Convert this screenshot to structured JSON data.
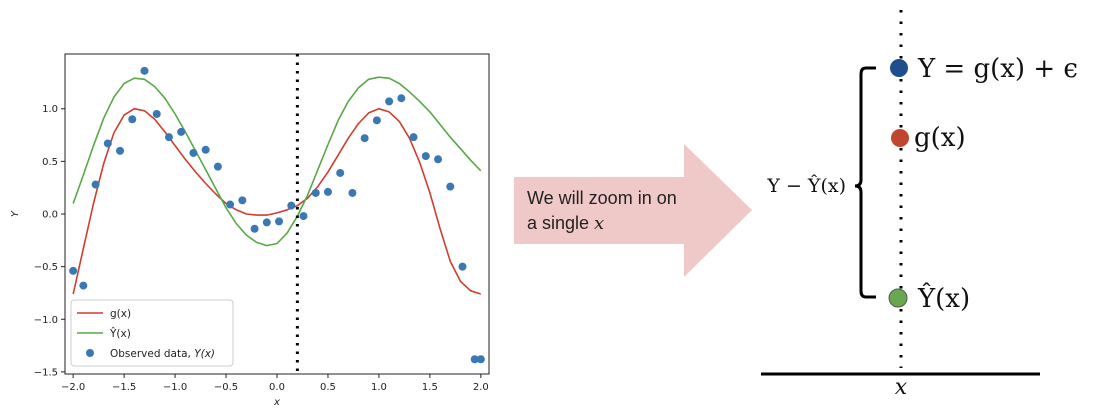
{
  "chart_data": {
    "type": "scatter",
    "xlabel": "x",
    "ylabel": "Y",
    "xlim": [
      -2.08,
      2.08
    ],
    "ylim": [
      -1.52,
      1.52
    ],
    "xticks": [
      "−2.0",
      "−1.5",
      "−1.0",
      "−0.5",
      "0.0",
      "0.5",
      "1.0",
      "1.5",
      "2.0"
    ],
    "xtick_values": [
      -2.0,
      -1.5,
      -1.0,
      -0.5,
      0.0,
      0.5,
      1.0,
      1.5,
      2.0
    ],
    "yticks": [
      "−1.5",
      "−1.0",
      "−0.5",
      "0.0",
      "0.5",
      "1.0"
    ],
    "ytick_values": [
      -1.5,
      -1.0,
      -0.5,
      0.0,
      0.5,
      1.0
    ],
    "vline_x": 0.2,
    "legend_position": "lower-left",
    "series": [
      {
        "name": "g(x)",
        "kind": "line",
        "color": "#d03d2e",
        "x": [
          -2.0,
          -1.9,
          -1.8,
          -1.7,
          -1.6,
          -1.5,
          -1.4,
          -1.3,
          -1.2,
          -1.1,
          -1.0,
          -0.9,
          -0.8,
          -0.7,
          -0.6,
          -0.5,
          -0.4,
          -0.3,
          -0.2,
          -0.1,
          0.0,
          0.1,
          0.2,
          0.3,
          0.4,
          0.5,
          0.6,
          0.7,
          0.8,
          0.9,
          1.0,
          1.1,
          1.2,
          1.3,
          1.4,
          1.5,
          1.6,
          1.7,
          1.8,
          1.9,
          2.0
        ],
        "y": [
          -0.76,
          -0.33,
          0.1,
          0.48,
          0.77,
          0.94,
          1.0,
          0.98,
          0.9,
          0.78,
          0.65,
          0.52,
          0.4,
          0.29,
          0.19,
          0.1,
          0.04,
          0.0,
          -0.01,
          -0.01,
          0.01,
          0.04,
          0.08,
          0.15,
          0.26,
          0.4,
          0.56,
          0.72,
          0.86,
          0.96,
          1.0,
          0.97,
          0.88,
          0.72,
          0.49,
          0.2,
          -0.14,
          -0.45,
          -0.64,
          -0.73,
          -0.76
        ]
      },
      {
        "name": "Ŷ(x)",
        "kind": "line",
        "color": "#58a845",
        "x": [
          -2.0,
          -1.9,
          -1.8,
          -1.7,
          -1.6,
          -1.5,
          -1.4,
          -1.3,
          -1.2,
          -1.1,
          -1.0,
          -0.9,
          -0.8,
          -0.7,
          -0.6,
          -0.5,
          -0.4,
          -0.3,
          -0.2,
          -0.1,
          0.0,
          0.1,
          0.2,
          0.3,
          0.4,
          0.5,
          0.6,
          0.7,
          0.8,
          0.9,
          1.0,
          1.1,
          1.2,
          1.3,
          1.4,
          1.5,
          1.6,
          1.7,
          1.8,
          1.9,
          2.0
        ],
        "y": [
          0.1,
          0.37,
          0.65,
          0.91,
          1.11,
          1.24,
          1.29,
          1.28,
          1.21,
          1.1,
          0.95,
          0.78,
          0.6,
          0.42,
          0.24,
          0.06,
          -0.09,
          -0.2,
          -0.27,
          -0.3,
          -0.28,
          -0.18,
          -0.02,
          0.18,
          0.42,
          0.66,
          0.89,
          1.07,
          1.2,
          1.28,
          1.3,
          1.29,
          1.24,
          1.16,
          1.07,
          0.97,
          0.85,
          0.73,
          0.62,
          0.51,
          0.41
        ]
      },
      {
        "name": "Observed data, Y(x)",
        "kind": "scatter",
        "color": "#3a78b5",
        "x": [
          -2.0,
          -1.9,
          -1.78,
          -1.66,
          -1.54,
          -1.42,
          -1.3,
          -1.18,
          -1.06,
          -0.94,
          -0.82,
          -0.7,
          -0.58,
          -0.46,
          -0.34,
          -0.22,
          -0.1,
          0.02,
          0.14,
          0.26,
          0.38,
          0.5,
          0.62,
          0.74,
          0.86,
          0.98,
          1.1,
          1.22,
          1.34,
          1.46,
          1.58,
          1.7,
          1.82,
          1.94,
          2.0
        ],
        "y": [
          -0.54,
          -0.68,
          0.28,
          0.67,
          0.6,
          0.9,
          1.36,
          0.95,
          0.73,
          0.78,
          0.58,
          0.61,
          0.45,
          0.09,
          0.13,
          -0.14,
          -0.08,
          -0.07,
          0.08,
          -0.02,
          0.2,
          0.21,
          0.39,
          0.2,
          0.72,
          0.89,
          1.07,
          1.1,
          0.73,
          0.55,
          0.52,
          0.26,
          -0.5,
          -1.38,
          -1.38
        ]
      }
    ]
  },
  "legend": {
    "g_label": "g(x)",
    "yhat_label": "Ŷ(x)",
    "obs_label_prefix": "Observed data, ",
    "obs_label_math": "Y(x)"
  },
  "arrow": {
    "line1": "We will zoom in on",
    "line2_prefix": "a single ",
    "line2_math": "x",
    "color": "#efc9c8"
  },
  "zoom": {
    "eq_y": "Y = g(x) + ϵ",
    "eq_g": "g(x)",
    "eq_yhat": "Ŷ(x)",
    "brace_label": "Y − Ŷ(x)",
    "x_label": "x",
    "colors": {
      "y_dot": "#1f4e8c",
      "g_dot": "#c0462d",
      "yhat_dot": "#6aa84f"
    }
  }
}
